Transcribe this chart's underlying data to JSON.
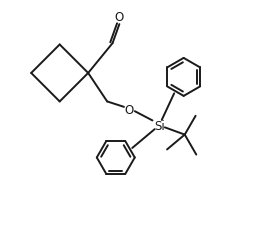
{
  "background_color": "#ffffff",
  "line_color": "#1a1a1a",
  "line_width": 1.4,
  "fig_width": 2.74,
  "fig_height": 2.32,
  "dpi": 100,
  "label_Si": "Si",
  "label_O": "O",
  "label_aldehyde_O": "O",
  "xlim": [
    0,
    10
  ],
  "ylim": [
    0,
    8.5
  ]
}
